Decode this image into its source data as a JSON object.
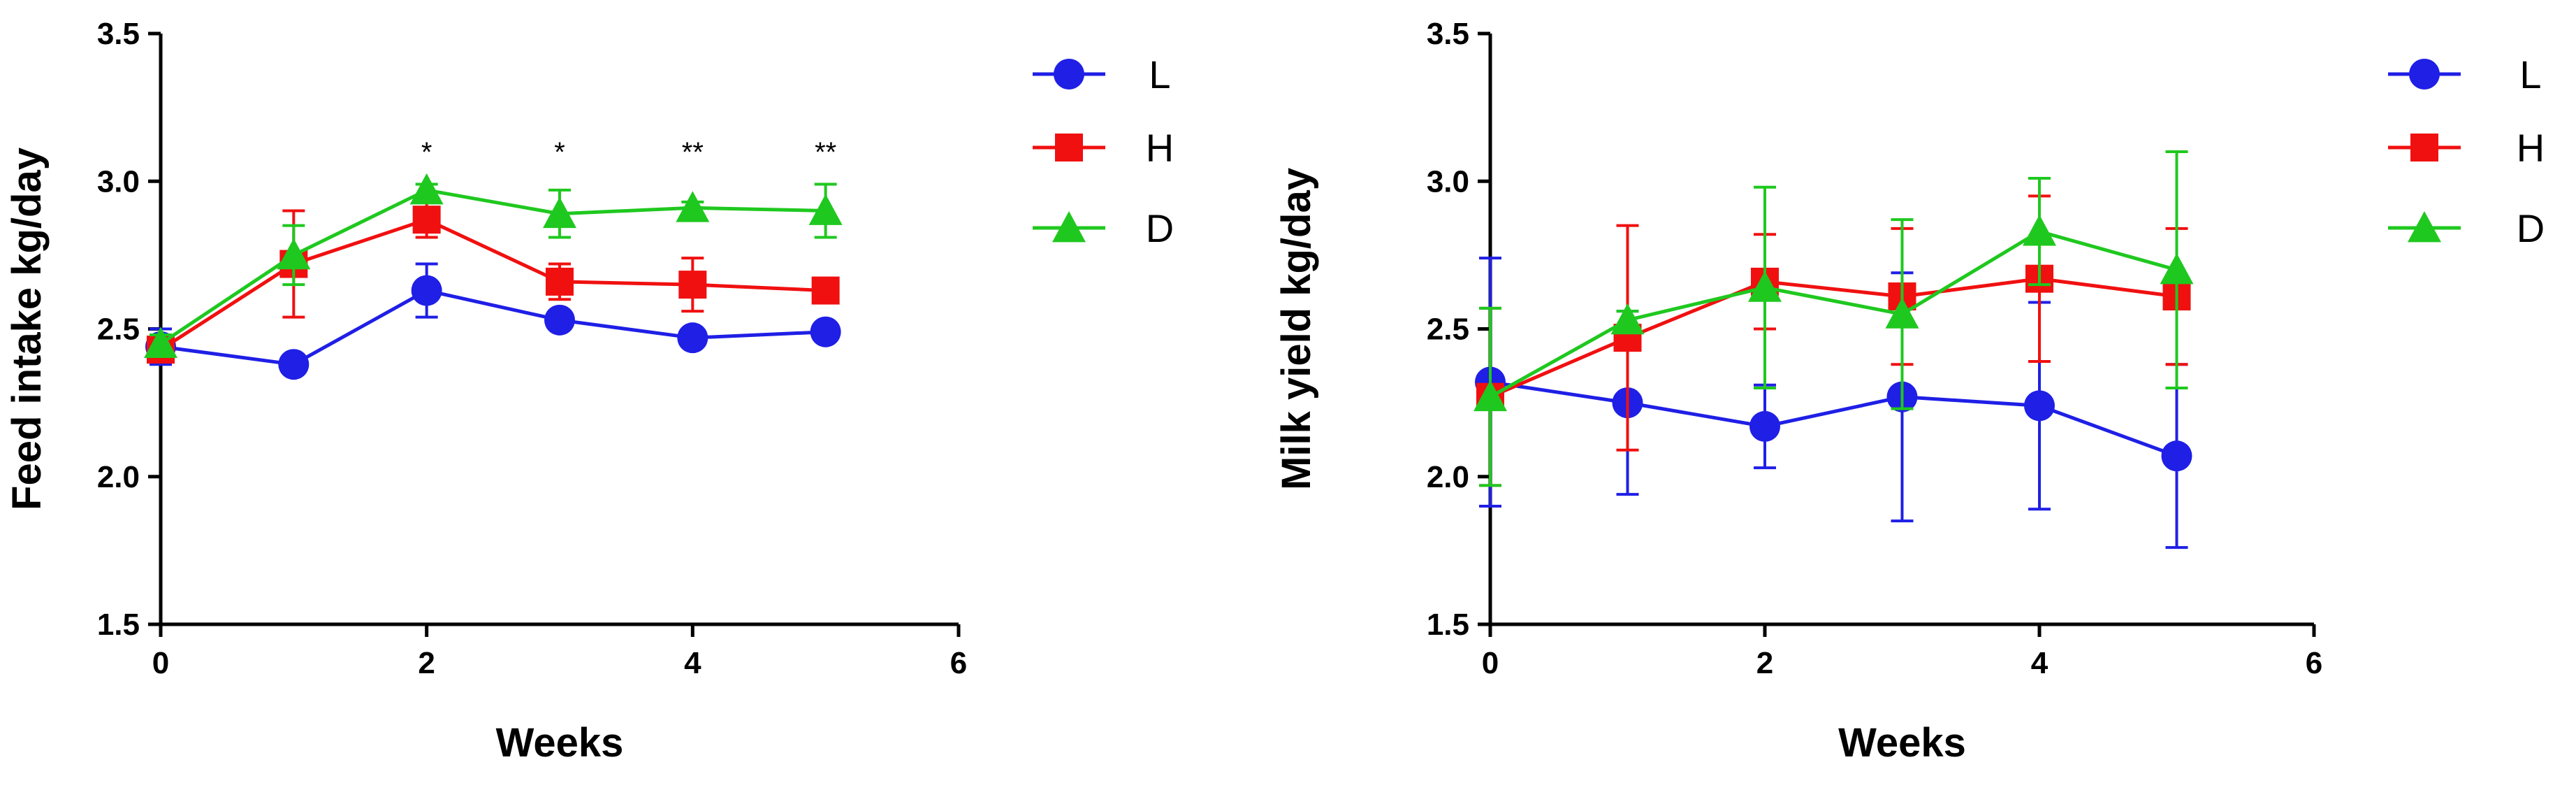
{
  "chart_data": [
    {
      "type": "line",
      "title": "",
      "xlabel": "Weeks",
      "ylabel": "Feed intake kg/day",
      "xlim": [
        0,
        6
      ],
      "ylim": [
        1.5,
        3.5
      ],
      "xticks": [
        "0",
        "2",
        "4",
        "6"
      ],
      "yticks": [
        "1.5",
        "2.0",
        "2.5",
        "3.0",
        "3.5"
      ],
      "grid": false,
      "legend_position": "right",
      "x": [
        0,
        1,
        2,
        3,
        4,
        5
      ],
      "series": [
        {
          "name": "L",
          "color": "#1f1fe6",
          "marker": "circle",
          "values": [
            2.44,
            2.38,
            2.63,
            2.53,
            2.47,
            2.49
          ],
          "errors": [
            0.06,
            0.03,
            0.09,
            0.02,
            0.02,
            0.02
          ]
        },
        {
          "name": "H",
          "color": "#f01010",
          "marker": "square",
          "values": [
            2.43,
            2.72,
            2.87,
            2.66,
            2.65,
            2.63
          ],
          "errors": [
            0.04,
            0.18,
            0.06,
            0.06,
            0.09,
            0.03
          ]
        },
        {
          "name": "D",
          "color": "#1fc81f",
          "marker": "triangle",
          "values": [
            2.45,
            2.75,
            2.97,
            2.89,
            2.91,
            2.9
          ],
          "errors": [
            0.03,
            0.1,
            0.02,
            0.08,
            0.02,
            0.09
          ]
        }
      ],
      "annotations": [
        {
          "x": 2,
          "y": 3.1,
          "text": "*"
        },
        {
          "x": 3,
          "y": 3.1,
          "text": "*"
        },
        {
          "x": 4,
          "y": 3.1,
          "text": "**"
        },
        {
          "x": 5,
          "y": 3.1,
          "text": "**"
        }
      ]
    },
    {
      "type": "line",
      "title": "",
      "xlabel": "Weeks",
      "ylabel": "Milk yield kg/day",
      "xlim": [
        0,
        6
      ],
      "ylim": [
        1.5,
        3.5
      ],
      "xticks": [
        "0",
        "2",
        "4",
        "6"
      ],
      "yticks": [
        "1.5",
        "2.0",
        "2.5",
        "3.0",
        "3.5"
      ],
      "grid": false,
      "legend_position": "right",
      "x": [
        0,
        1,
        2,
        3,
        4,
        5
      ],
      "series": [
        {
          "name": "L",
          "color": "#1f1fe6",
          "marker": "circle",
          "values": [
            2.32,
            2.25,
            2.17,
            2.27,
            2.24,
            2.07
          ],
          "errors": [
            0.42,
            0.31,
            0.14,
            0.42,
            0.35,
            0.31
          ]
        },
        {
          "name": "H",
          "color": "#f01010",
          "marker": "square",
          "values": [
            2.27,
            2.47,
            2.66,
            2.61,
            2.67,
            2.61
          ],
          "errors": [
            0.3,
            0.38,
            0.16,
            0.23,
            0.28,
            0.23
          ]
        },
        {
          "name": "D",
          "color": "#1fc81f",
          "marker": "triangle",
          "values": [
            2.27,
            2.53,
            2.64,
            2.55,
            2.83,
            2.7
          ],
          "errors": [
            0.3,
            0.03,
            0.34,
            0.32,
            0.18,
            0.4
          ]
        }
      ],
      "annotations": []
    }
  ]
}
